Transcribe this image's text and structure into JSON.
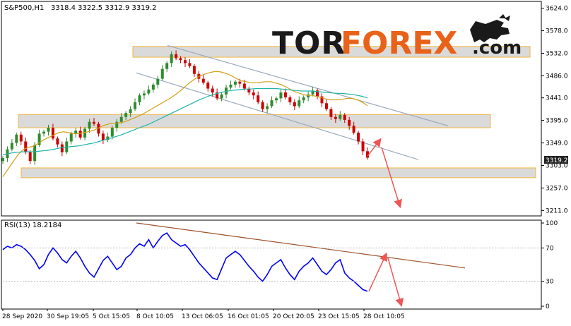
{
  "chart_data": [
    {
      "type": "candlestick",
      "symbol_label": "S&P500,H1",
      "ohlc": "3318.4 3322.5 3312.9 3319.2",
      "current_price": "3319.2",
      "y_ticks": [
        "3624.0",
        "3578.0",
        "3532.0",
        "3486.0",
        "3441.0",
        "3395.0",
        "3349.0",
        "3303.0",
        "3257.0",
        "3211.0"
      ],
      "ylim": [
        3200,
        3635
      ],
      "x_ticks": [
        "28 Sep 2020",
        "30 Sep 19:05",
        "5 Oct 15:05",
        "8 Oct 10:05",
        "13 Oct 06:05",
        "16 Oct 01:05",
        "20 Oct 20:05",
        "23 Oct 15:05",
        "28 Oct 10:05"
      ],
      "series": [
        {
          "values": [
            3318,
            3336,
            3349,
            3366,
            3352,
            3330,
            3312,
            3345,
            3368,
            3372,
            3380,
            3358,
            3346,
            3330,
            3352,
            3368,
            3374,
            3360,
            3378,
            3392,
            3388,
            3368,
            3355,
            3362,
            3380,
            3392,
            3402,
            3410,
            3418,
            3432,
            3446,
            3450,
            3458,
            3468,
            3480,
            3500,
            3512,
            3530,
            3522,
            3518,
            3512,
            3506,
            3490,
            3480,
            3472,
            3460,
            3452,
            3440,
            3448,
            3462,
            3468,
            3474,
            3470,
            3460,
            3452,
            3446,
            3432,
            3418,
            3424,
            3436,
            3440,
            3452,
            3442,
            3432,
            3424,
            3436,
            3442,
            3448,
            3456,
            3444,
            3430,
            3418,
            3402,
            3398,
            3406,
            3396,
            3384,
            3370,
            3352,
            3332,
            3319
          ]
        },
        {
          "values": [
            3280,
            3295,
            3310,
            3325,
            3335,
            3340,
            3342,
            3348,
            3355,
            3360,
            3365,
            3370,
            3372,
            3370,
            3368,
            3368,
            3370,
            3372,
            3375,
            3380,
            3385,
            3388,
            3389,
            3390,
            3392,
            3396,
            3400,
            3405,
            3410,
            3416,
            3422,
            3428,
            3434,
            3440,
            3447,
            3455,
            3464,
            3473,
            3480,
            3486,
            3490,
            3493,
            3495,
            3494,
            3491,
            3487,
            3481,
            3476,
            3474,
            3472,
            3472,
            3473,
            3474,
            3474,
            3471,
            3468,
            3463,
            3457,
            3452,
            3449,
            3446,
            3446,
            3444,
            3441,
            3438,
            3437,
            3437,
            3438,
            3440,
            3440,
            3437,
            3432,
            3425
          ]
        },
        {
          "values": [
            3325,
            3327,
            3329,
            3330,
            3331,
            3331,
            3331,
            3332,
            3333,
            3334,
            3336,
            3338,
            3340,
            3341,
            3342,
            3343,
            3345,
            3347,
            3349,
            3352,
            3355,
            3358,
            3361,
            3364,
            3368,
            3372,
            3376,
            3380,
            3384,
            3388,
            3393,
            3398,
            3403,
            3408,
            3413,
            3418,
            3423,
            3428,
            3433,
            3438,
            3442,
            3446,
            3449,
            3452,
            3454,
            3456,
            3457,
            3458,
            3459,
            3459,
            3460,
            3460,
            3460,
            3460,
            3460,
            3459,
            3458,
            3457,
            3456,
            3455,
            3455,
            3455,
            3454,
            3453,
            3452,
            3451,
            3450,
            3450,
            3449,
            3448,
            3446,
            3444,
            3441
          ]
        }
      ],
      "colors": {
        "bull_candle": "#2e8b2e",
        "bear_candle": "#cc0000",
        "ma_fast": "#d4a017",
        "ma_slow": "#20b2aa",
        "channel": "#9aa9bf",
        "zone_fill": "#d9d9d9",
        "zone_border": "#f2b233",
        "arrow": "#ee5555"
      }
    },
    {
      "type": "line",
      "indicator_label": "RSI(13) 18.2184",
      "y_ticks": [
        "100",
        "70",
        "30",
        "0"
      ],
      "ylim": [
        0,
        100
      ],
      "series": [
        {
          "values": [
            68,
            72,
            70,
            74,
            72,
            68,
            62,
            55,
            45,
            50,
            62,
            70,
            64,
            56,
            52,
            60,
            66,
            58,
            48,
            40,
            35,
            45,
            55,
            60,
            52,
            44,
            48,
            58,
            62,
            70,
            75,
            72,
            80,
            70,
            78,
            85,
            88,
            80,
            76,
            72,
            74,
            68,
            60,
            52,
            46,
            40,
            34,
            32,
            45,
            58,
            62,
            66,
            62,
            55,
            48,
            42,
            35,
            30,
            38,
            48,
            52,
            56,
            46,
            38,
            32,
            42,
            48,
            52,
            58,
            50,
            42,
            38,
            44,
            52,
            56,
            40,
            34,
            30,
            25,
            20,
            18
          ]
        }
      ],
      "colors": {
        "line": "#0000ff",
        "trend": "#a0522d",
        "arrow": "#ee5555"
      }
    }
  ],
  "logo": {
    "tor": "TOR",
    "forex": "FOREX",
    "com": ".com"
  }
}
